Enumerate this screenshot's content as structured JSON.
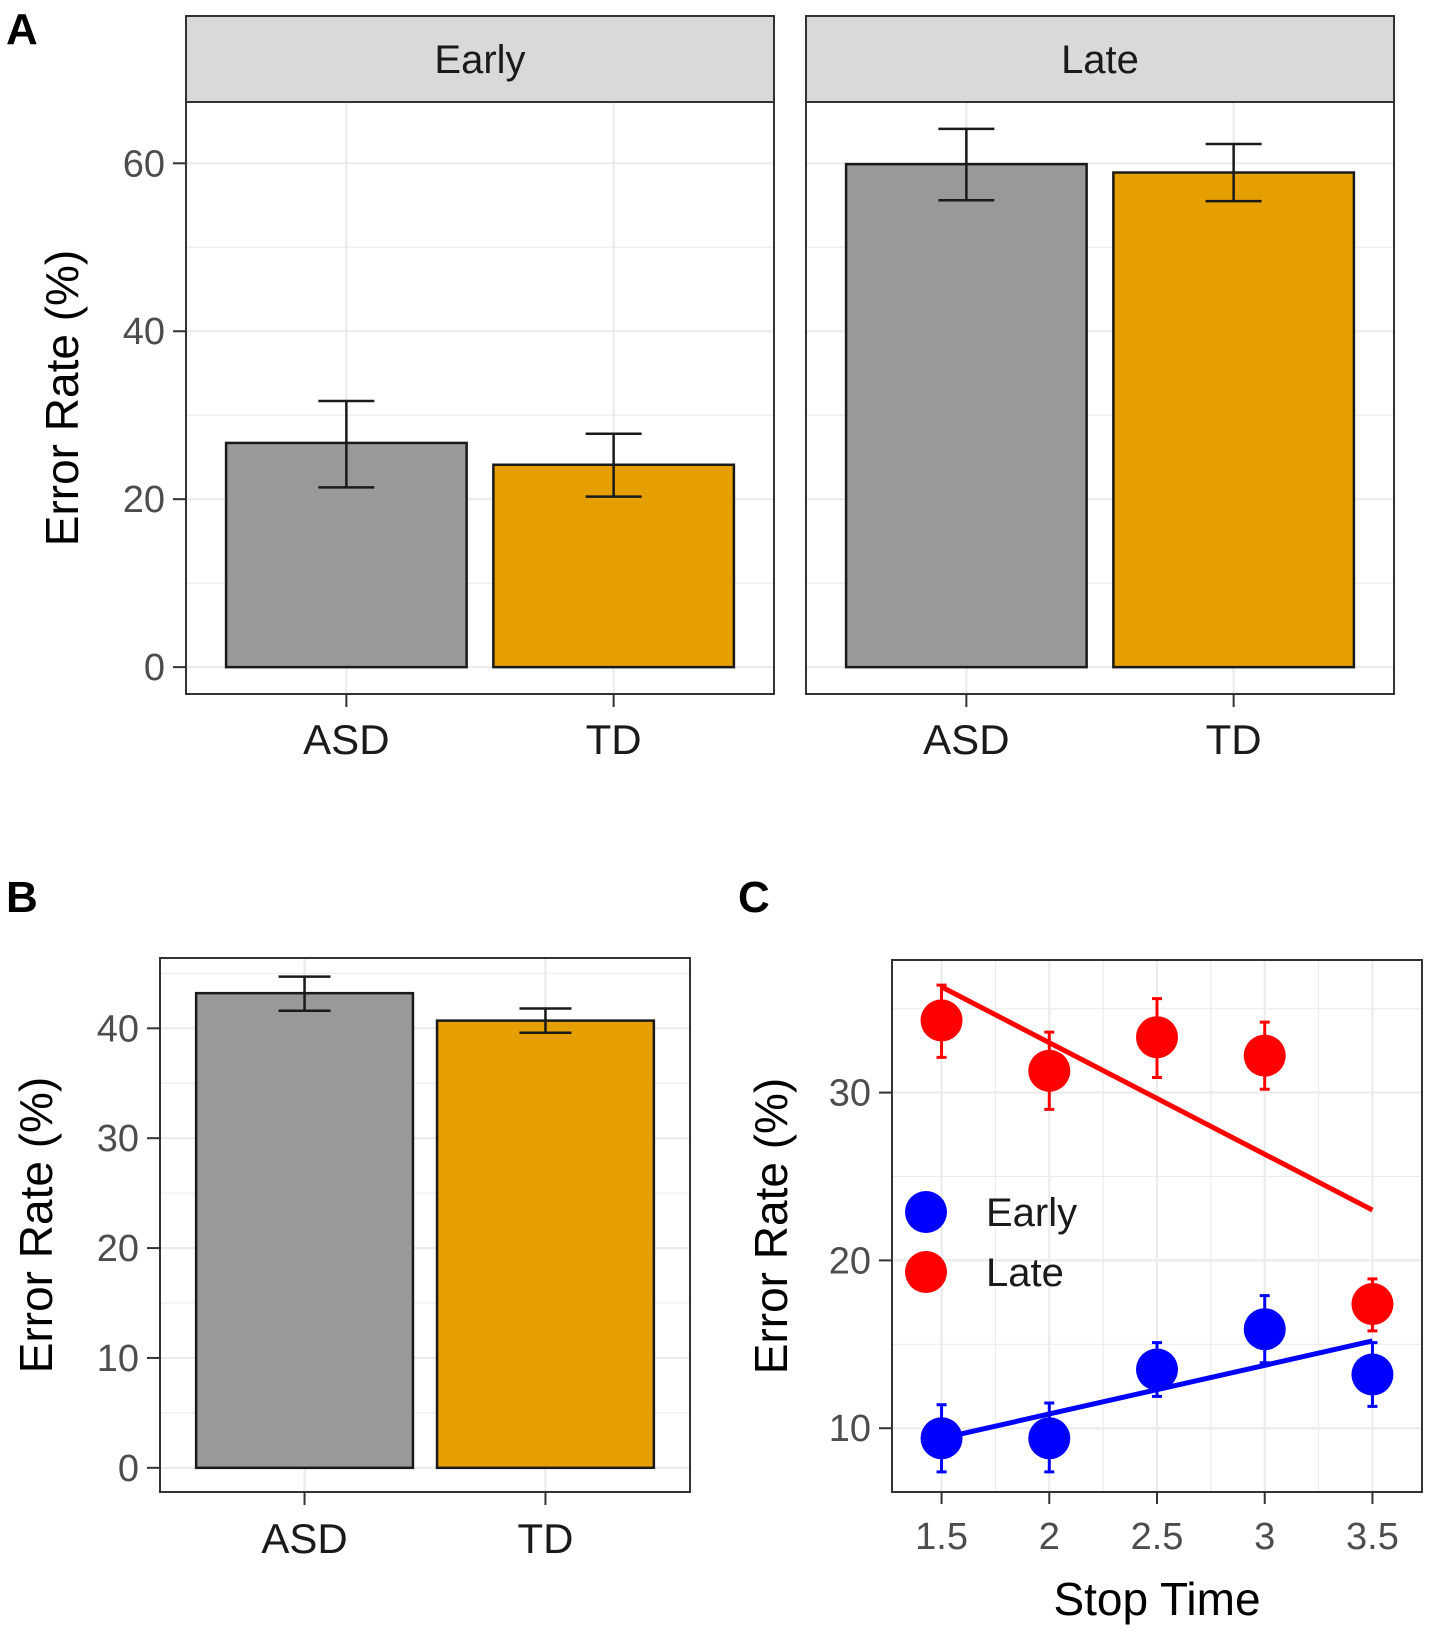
{
  "chart_data": [
    {
      "panel": "A",
      "type": "bar",
      "facets": [
        {
          "strip": "Early",
          "categories": [
            "ASD",
            "TD"
          ],
          "values": [
            26.7,
            24.1
          ],
          "error_low": [
            21.4,
            20.3
          ],
          "error_high": [
            31.7,
            27.8
          ],
          "colors": [
            "#999999",
            "#e69f00"
          ]
        },
        {
          "strip": "Late",
          "categories": [
            "ASD",
            "TD"
          ],
          "values": [
            59.9,
            58.9
          ],
          "error_low": [
            55.6,
            55.5
          ],
          "error_high": [
            64.1,
            62.3
          ],
          "colors": [
            "#999999",
            "#e69f00"
          ]
        }
      ],
      "ylabel": "Error Rate (%)",
      "ylim": [
        -3.2,
        67.3
      ],
      "yticks": [
        0,
        20,
        40,
        60
      ],
      "ytick_labels": [
        "0",
        "20",
        "40",
        "60"
      ]
    },
    {
      "panel": "B",
      "type": "bar",
      "categories": [
        "ASD",
        "TD"
      ],
      "values": [
        43.2,
        40.7
      ],
      "error_low": [
        41.6,
        39.6
      ],
      "error_high": [
        44.7,
        41.8
      ],
      "colors": [
        "#999999",
        "#e69f00"
      ],
      "ylabel": "Error Rate (%)",
      "ylim": [
        -2.2,
        46.4
      ],
      "yticks": [
        0,
        10,
        20,
        30,
        40
      ],
      "ytick_labels": [
        "0",
        "10",
        "20",
        "30",
        "40"
      ]
    },
    {
      "panel": "C",
      "type": "scatter",
      "x": [
        1.5,
        2,
        2.5,
        3,
        3.5
      ],
      "xtick_labels": [
        "1.5",
        "2",
        "2.5",
        "3",
        "3.5"
      ],
      "series": [
        {
          "name": "Early",
          "color": "#0000ff",
          "values": [
            9.4,
            9.4,
            13.5,
            15.9,
            13.2
          ],
          "error_low": [
            7.4,
            7.4,
            11.9,
            13.9,
            11.3
          ],
          "error_high": [
            11.4,
            11.5,
            15.1,
            17.9,
            15.1
          ],
          "fit": [
            9.4,
            15.2
          ]
        },
        {
          "name": "Late",
          "color": "#ff0000",
          "values": [
            34.3,
            31.3,
            33.3,
            32.2,
            17.4
          ],
          "error_low": [
            32.1,
            29.0,
            30.9,
            30.2,
            15.8
          ],
          "error_high": [
            36.4,
            33.6,
            35.6,
            34.2,
            18.9
          ],
          "fit": [
            36.3,
            23.0
          ]
        }
      ],
      "xlabel": "Stop Time",
      "ylabel": "Error Rate (%)",
      "xlim": [
        1.27,
        3.73
      ],
      "ylim": [
        6.2,
        37.9
      ],
      "yticks": [
        10,
        20,
        30
      ],
      "ytick_labels": [
        "10",
        "20",
        "30"
      ],
      "legend": "center-left"
    }
  ]
}
